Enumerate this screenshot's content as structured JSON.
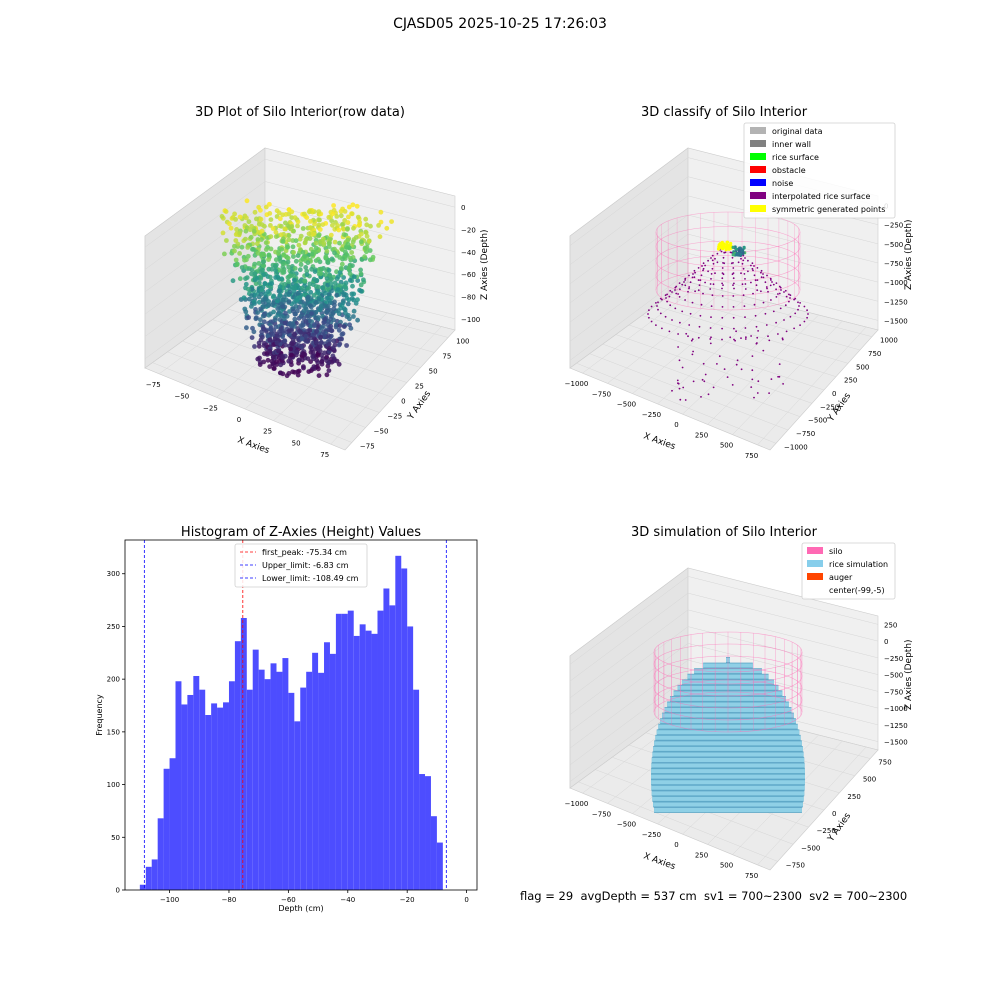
{
  "suptitle": "CJASD05 2025-10-25 17:26:03",
  "status_line": "flag = 29  avgDepth = 537 cm  sv1 = 700~2300  sv2 = 700~2300",
  "chart_data": [
    {
      "type": "scatter",
      "title": "3D Plot of Silo Interior(row data)",
      "xlabel": "X Axies",
      "ylabel": "Y Axies",
      "zlabel": "Z Axies (Depth)",
      "xticks": [
        "−75",
        "−50",
        "−25",
        "0",
        "25",
        "50",
        "75"
      ],
      "yticks": [
        "−75",
        "−50",
        "−25",
        "0",
        "25",
        "50",
        "75",
        "100"
      ],
      "zticks": [
        "0",
        "−20",
        "−40",
        "−60",
        "−80",
        "−100"
      ],
      "xlim": [
        -85,
        100
      ],
      "ylim": [
        -80,
        100
      ],
      "zlim": [
        -115,
        5
      ],
      "colormap": "viridis"
    },
    {
      "type": "scatter",
      "title": "3D classify of Silo Interior",
      "xlabel": "X Axies",
      "ylabel": "Y Axies",
      "zlabel": "Z Axies (Depth)",
      "xticks": [
        "−1000",
        "−750",
        "−500",
        "−250",
        "0",
        "250",
        "500",
        "750"
      ],
      "yticks": [
        "−1000",
        "−750",
        "−500",
        "−250",
        "0",
        "250",
        "500",
        "750",
        "1000"
      ],
      "zticks": [
        "0",
        "−250",
        "−500",
        "−750",
        "−1000",
        "−1250",
        "−1500"
      ],
      "legend_position": "upper-right",
      "legend": [
        {
          "label": "original data",
          "color": "#b3b3b3"
        },
        {
          "label": "inner wall",
          "color": "#808080"
        },
        {
          "label": "rice surface",
          "color": "#00ff00"
        },
        {
          "label": "obstacle",
          "color": "#ff0000"
        },
        {
          "label": "noise",
          "color": "#0000ff"
        },
        {
          "label": "interpolated rice surface",
          "color": "#800080"
        },
        {
          "label": "symmetric generated points",
          "color": "#ffff00"
        }
      ]
    },
    {
      "type": "bar",
      "title": "Histogram of Z-Axies (Height) Values",
      "xlabel": "Depth (cm)",
      "ylabel": "Frequency",
      "xlim": [
        -115,
        3.5
      ],
      "ylim": [
        0,
        332
      ],
      "xticks": [
        -100,
        -80,
        -60,
        -40,
        -20,
        0
      ],
      "yticks": [
        0,
        50,
        100,
        150,
        200,
        250,
        300
      ],
      "bar_color": "#4d4dff",
      "bin_start": -110,
      "bin_width": 2,
      "values": [
        5,
        22,
        29,
        68,
        115,
        125,
        198,
        176,
        185,
        203,
        190,
        166,
        177,
        173,
        178,
        198,
        236,
        258,
        190,
        228,
        209,
        200,
        215,
        207,
        220,
        187,
        160,
        192,
        207,
        225,
        206,
        235,
        224,
        262,
        262,
        265,
        241,
        252,
        246,
        243,
        265,
        286,
        270,
        317,
        305,
        250,
        190,
        110,
        108,
        70,
        45
      ],
      "vlines": [
        {
          "label": "first_peak: -75.34 cm",
          "x": -75.34,
          "color": "#ff0000"
        },
        {
          "label": "Upper_limit: -6.83 cm",
          "x": -6.83,
          "color": "#0000ff"
        },
        {
          "label": "Lower_limit: -108.49 cm",
          "x": -108.49,
          "color": "#0000ff"
        }
      ],
      "legend_position": "upper-center"
    },
    {
      "type": "scatter",
      "title": "3D simulation of Silo Interior",
      "xlabel": "X Axies",
      "ylabel": "Y Axies",
      "zlabel": "Z Axies (Depth)",
      "xticks": [
        "−1000",
        "−750",
        "−500",
        "−250",
        "0",
        "250",
        "500",
        "750"
      ],
      "yticks": [
        "−750",
        "−500",
        "−250",
        "0",
        "250",
        "500",
        "750"
      ],
      "zticks": [
        "250",
        "0",
        "−250",
        "−500",
        "−750",
        "−1000",
        "−1250",
        "−1500"
      ],
      "legend_position": "upper-right",
      "legend": [
        {
          "label": "silo",
          "color": "#ff69b4"
        },
        {
          "label": "rice simulation",
          "color": "#87ceeb"
        },
        {
          "label": "auger",
          "color": "#ff4500"
        },
        {
          "label": "center(-99,-5)",
          "color": "#ffffff"
        }
      ]
    }
  ]
}
